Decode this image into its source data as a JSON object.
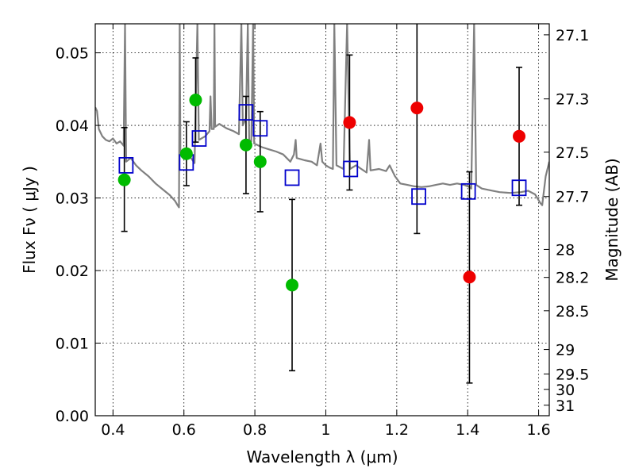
{
  "chart_data": {
    "type": "scatter",
    "xlabel": "Wavelength  λ (μm)",
    "ylabel": "Flux  Fν  ( μJy )",
    "ylabel_right": "Magnitude (AB)",
    "xlim": [
      0.35,
      1.63
    ],
    "ylim": [
      0.0,
      0.054
    ],
    "grid": true,
    "x_ticks": [
      {
        "value": 0.4,
        "label": "0.4"
      },
      {
        "value": 0.6,
        "label": "0.6"
      },
      {
        "value": 0.8,
        "label": "0.8"
      },
      {
        "value": 1.0,
        "label": "1"
      },
      {
        "value": 1.2,
        "label": "1.2"
      },
      {
        "value": 1.4,
        "label": "1.4"
      },
      {
        "value": 1.6,
        "label": "1.6"
      }
    ],
    "y_ticks": [
      {
        "value": 0.0,
        "label": "0.00"
      },
      {
        "value": 0.01,
        "label": "0.01"
      },
      {
        "value": 0.02,
        "label": "0.02"
      },
      {
        "value": 0.03,
        "label": "0.03"
      },
      {
        "value": 0.04,
        "label": "0.04"
      },
      {
        "value": 0.05,
        "label": "0.05"
      }
    ],
    "mag_ticks": [
      {
        "value": 27.1,
        "label": "27.1"
      },
      {
        "value": 27.3,
        "label": "27.3"
      },
      {
        "value": 27.5,
        "label": "27.5"
      },
      {
        "value": 27.7,
        "label": "27.7"
      },
      {
        "value": 28,
        "label": "28"
      },
      {
        "value": 28.2,
        "label": "28.2"
      },
      {
        "value": 28.5,
        "label": "28.5"
      },
      {
        "value": 29,
        "label": "29"
      },
      {
        "value": 29.5,
        "label": "29.5"
      },
      {
        "value": 30,
        "label": "30"
      },
      {
        "value": 31,
        "label": "31"
      }
    ],
    "series": [
      {
        "kind": "line",
        "color": "#808080",
        "points": [
          [
            0.35,
            0.0425
          ],
          [
            0.355,
            0.042
          ],
          [
            0.36,
            0.0395
          ],
          [
            0.37,
            0.0385
          ],
          [
            0.38,
            0.038
          ],
          [
            0.39,
            0.0378
          ],
          [
            0.4,
            0.0382
          ],
          [
            0.41,
            0.0375
          ],
          [
            0.42,
            0.0378
          ],
          [
            0.43,
            0.0372
          ],
          [
            0.434,
            0.054
          ],
          [
            0.437,
            0.035
          ],
          [
            0.45,
            0.0355
          ],
          [
            0.465,
            0.0345
          ],
          [
            0.48,
            0.0338
          ],
          [
            0.5,
            0.033
          ],
          [
            0.52,
            0.032
          ],
          [
            0.54,
            0.0312
          ],
          [
            0.56,
            0.0304
          ],
          [
            0.575,
            0.0296
          ],
          [
            0.582,
            0.029
          ],
          [
            0.586,
            0.0287
          ],
          [
            0.588,
            0.054
          ],
          [
            0.59,
            0.036
          ],
          [
            0.6,
            0.0365
          ],
          [
            0.62,
            0.0355
          ],
          [
            0.63,
            0.0348
          ],
          [
            0.638,
            0.054
          ],
          [
            0.642,
            0.038
          ],
          [
            0.66,
            0.0385
          ],
          [
            0.672,
            0.0392
          ],
          [
            0.675,
            0.044
          ],
          [
            0.678,
            0.0395
          ],
          [
            0.684,
            0.0395
          ],
          [
            0.686,
            0.054
          ],
          [
            0.688,
            0.0398
          ],
          [
            0.7,
            0.0402
          ],
          [
            0.72,
            0.0396
          ],
          [
            0.74,
            0.0392
          ],
          [
            0.755,
            0.0388
          ],
          [
            0.762,
            0.054
          ],
          [
            0.766,
            0.04
          ],
          [
            0.775,
            0.041
          ],
          [
            0.78,
            0.054
          ],
          [
            0.784,
            0.038
          ],
          [
            0.79,
            0.0378
          ],
          [
            0.795,
            0.054
          ],
          [
            0.798,
            0.0375
          ],
          [
            0.82,
            0.037
          ],
          [
            0.84,
            0.0367
          ],
          [
            0.86,
            0.0364
          ],
          [
            0.88,
            0.036
          ],
          [
            0.9,
            0.035
          ],
          [
            0.91,
            0.036
          ],
          [
            0.915,
            0.038
          ],
          [
            0.918,
            0.0355
          ],
          [
            0.94,
            0.0352
          ],
          [
            0.96,
            0.035
          ],
          [
            0.975,
            0.0345
          ],
          [
            0.985,
            0.0375
          ],
          [
            0.99,
            0.035
          ],
          [
            1.0,
            0.0345
          ],
          [
            1.01,
            0.0342
          ],
          [
            1.02,
            0.034
          ],
          [
            1.024,
            0.054
          ],
          [
            1.03,
            0.0345
          ],
          [
            1.05,
            0.034
          ],
          [
            1.06,
            0.054
          ],
          [
            1.068,
            0.034
          ],
          [
            1.085,
            0.0345
          ],
          [
            1.1,
            0.034
          ],
          [
            1.115,
            0.0335
          ],
          [
            1.122,
            0.038
          ],
          [
            1.126,
            0.0338
          ],
          [
            1.15,
            0.034
          ],
          [
            1.17,
            0.0337
          ],
          [
            1.18,
            0.0345
          ],
          [
            1.195,
            0.033
          ],
          [
            1.21,
            0.032
          ],
          [
            1.23,
            0.0318
          ],
          [
            1.25,
            0.0316
          ],
          [
            1.27,
            0.0315
          ],
          [
            1.29,
            0.0316
          ],
          [
            1.31,
            0.0318
          ],
          [
            1.33,
            0.032
          ],
          [
            1.35,
            0.0318
          ],
          [
            1.37,
            0.032
          ],
          [
            1.39,
            0.0318
          ],
          [
            1.405,
            0.0315
          ],
          [
            1.41,
            0.0313
          ],
          [
            1.418,
            0.054
          ],
          [
            1.424,
            0.0318
          ],
          [
            1.44,
            0.0313
          ],
          [
            1.47,
            0.031
          ],
          [
            1.49,
            0.0308
          ],
          [
            1.52,
            0.0307
          ],
          [
            1.55,
            0.0308
          ],
          [
            1.57,
            0.031
          ],
          [
            1.59,
            0.0305
          ],
          [
            1.605,
            0.0293
          ],
          [
            1.61,
            0.029
          ],
          [
            1.615,
            0.031
          ],
          [
            1.62,
            0.033
          ],
          [
            1.63,
            0.035
          ]
        ]
      },
      {
        "kind": "model_squares",
        "color": "#0000cc",
        "points": [
          [
            0.437,
            0.0345
          ],
          [
            0.607,
            0.0349
          ],
          [
            0.643,
            0.0382
          ],
          [
            0.775,
            0.0418
          ],
          [
            0.815,
            0.0396
          ],
          [
            0.905,
            0.0328
          ],
          [
            1.07,
            0.034
          ],
          [
            1.262,
            0.0302
          ],
          [
            1.402,
            0.0309
          ],
          [
            1.545,
            0.0314
          ]
        ]
      },
      {
        "kind": "points",
        "color": "#00bb00",
        "points": [
          {
            "x": 0.432,
            "y": 0.0325,
            "ylo": 0.0254,
            "yhi": 0.0397
          },
          {
            "x": 0.607,
            "y": 0.0361,
            "ylo": 0.0317,
            "yhi": 0.0405
          },
          {
            "x": 0.633,
            "y": 0.0435,
            "ylo": 0.0377,
            "yhi": 0.0493
          },
          {
            "x": 0.775,
            "y": 0.0373,
            "ylo": 0.0306,
            "yhi": 0.044
          },
          {
            "x": 0.815,
            "y": 0.035,
            "ylo": 0.0281,
            "yhi": 0.0419
          },
          {
            "x": 0.905,
            "y": 0.018,
            "ylo": 0.0062,
            "yhi": 0.0298
          }
        ]
      },
      {
        "kind": "points",
        "color": "#ee0000",
        "points": [
          {
            "x": 1.067,
            "y": 0.0404,
            "ylo": 0.0311,
            "yhi": 0.0497
          },
          {
            "x": 1.257,
            "y": 0.0424,
            "ylo": 0.0251,
            "yhi": 0.054
          },
          {
            "x": 1.405,
            "y": 0.0191,
            "ylo": 0.0045,
            "yhi": 0.0336
          },
          {
            "x": 1.545,
            "y": 0.0385,
            "ylo": 0.029,
            "yhi": 0.048
          }
        ]
      }
    ]
  }
}
